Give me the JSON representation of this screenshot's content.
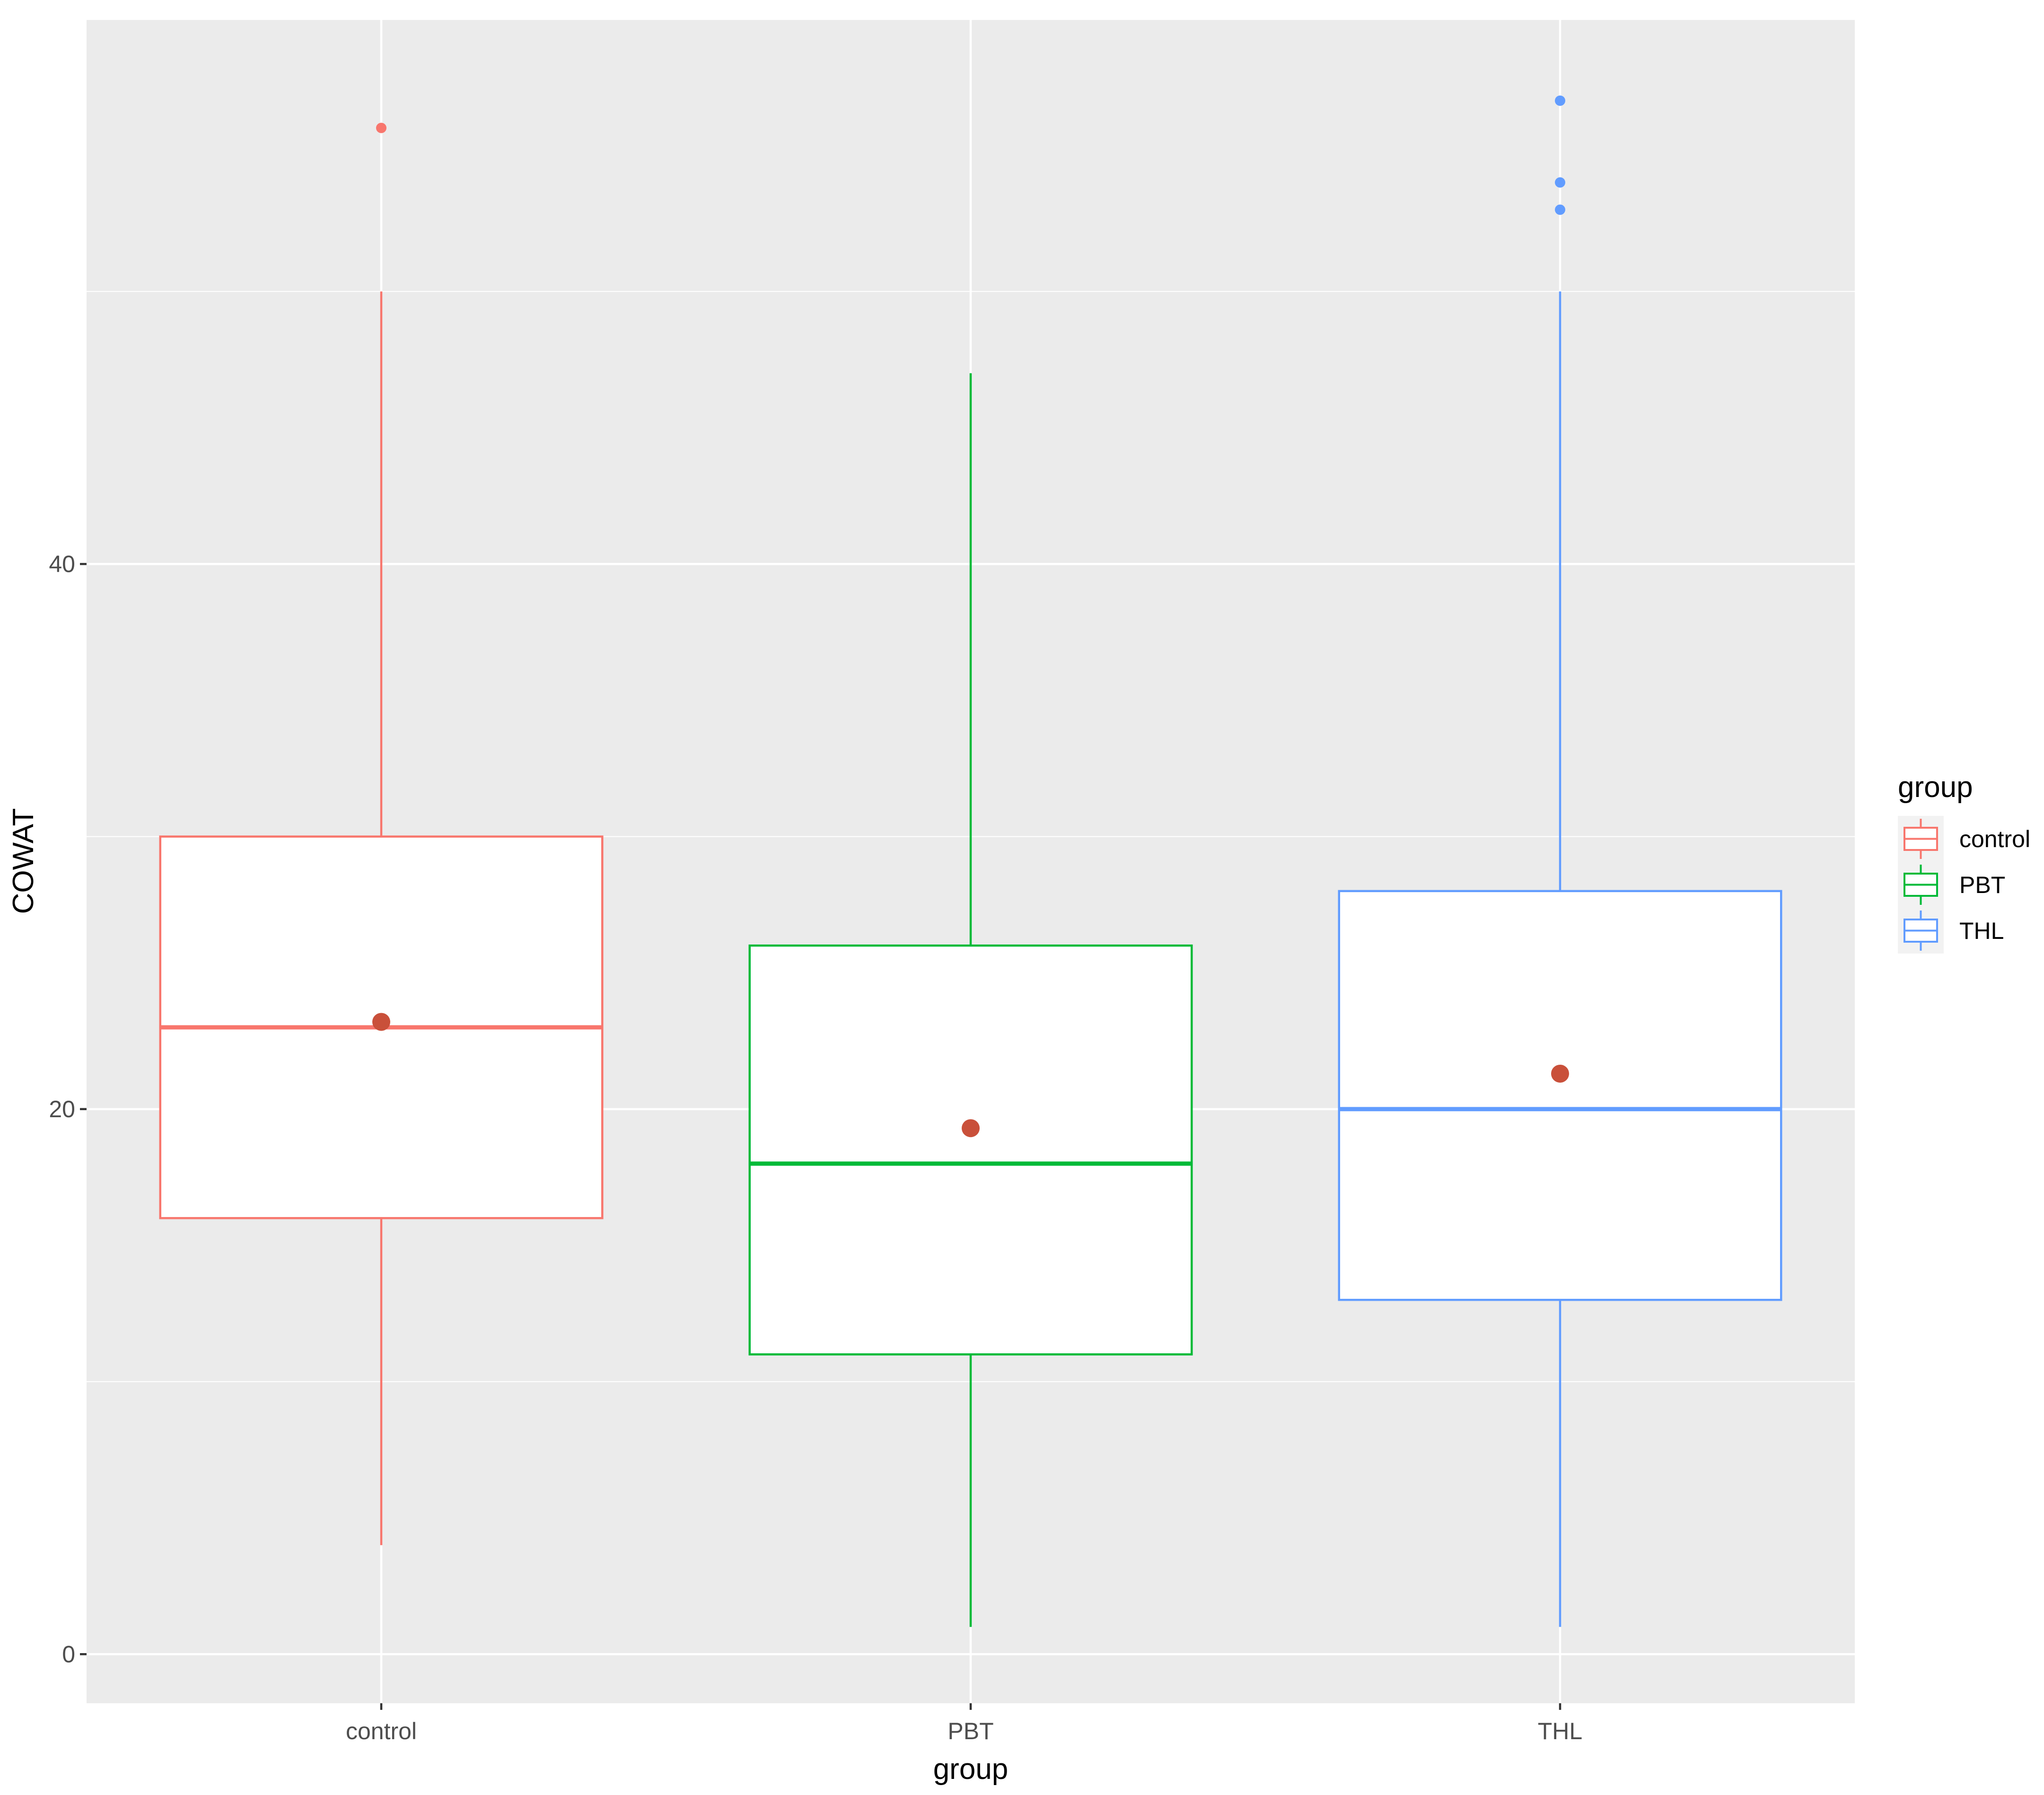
{
  "chart_data": {
    "type": "boxplot",
    "xlabel": "group",
    "ylabel": "COWAT",
    "ylim": [
      -1.8,
      60
    ],
    "yticks": [
      0,
      20,
      40
    ],
    "grid": true,
    "legend": {
      "title": "group",
      "position": "right",
      "entries": [
        "control",
        "PBT",
        "THL"
      ]
    },
    "colors": {
      "control": "#f8766d",
      "PBT": "#00ba38",
      "THL": "#619cff",
      "mean_point": "#c9503a",
      "panel_bg": "#ebebeb",
      "grid": "#ffffff"
    },
    "categories": [
      "control",
      "PBT",
      "THL"
    ],
    "boxes": [
      {
        "group": "control",
        "whisker_low": 4,
        "q1": 16,
        "median": 23,
        "q3": 30,
        "whisker_high": 50,
        "mean": 23.2,
        "outliers": [
          56
        ]
      },
      {
        "group": "PBT",
        "whisker_low": 1,
        "q1": 11,
        "median": 18,
        "q3": 26,
        "whisker_high": 47,
        "mean": 19.3,
        "outliers": []
      },
      {
        "group": "THL",
        "whisker_low": 1,
        "q1": 13,
        "median": 20,
        "q3": 28,
        "whisker_high": 50,
        "mean": 21.3,
        "outliers": [
          57,
          54,
          53
        ]
      }
    ]
  }
}
